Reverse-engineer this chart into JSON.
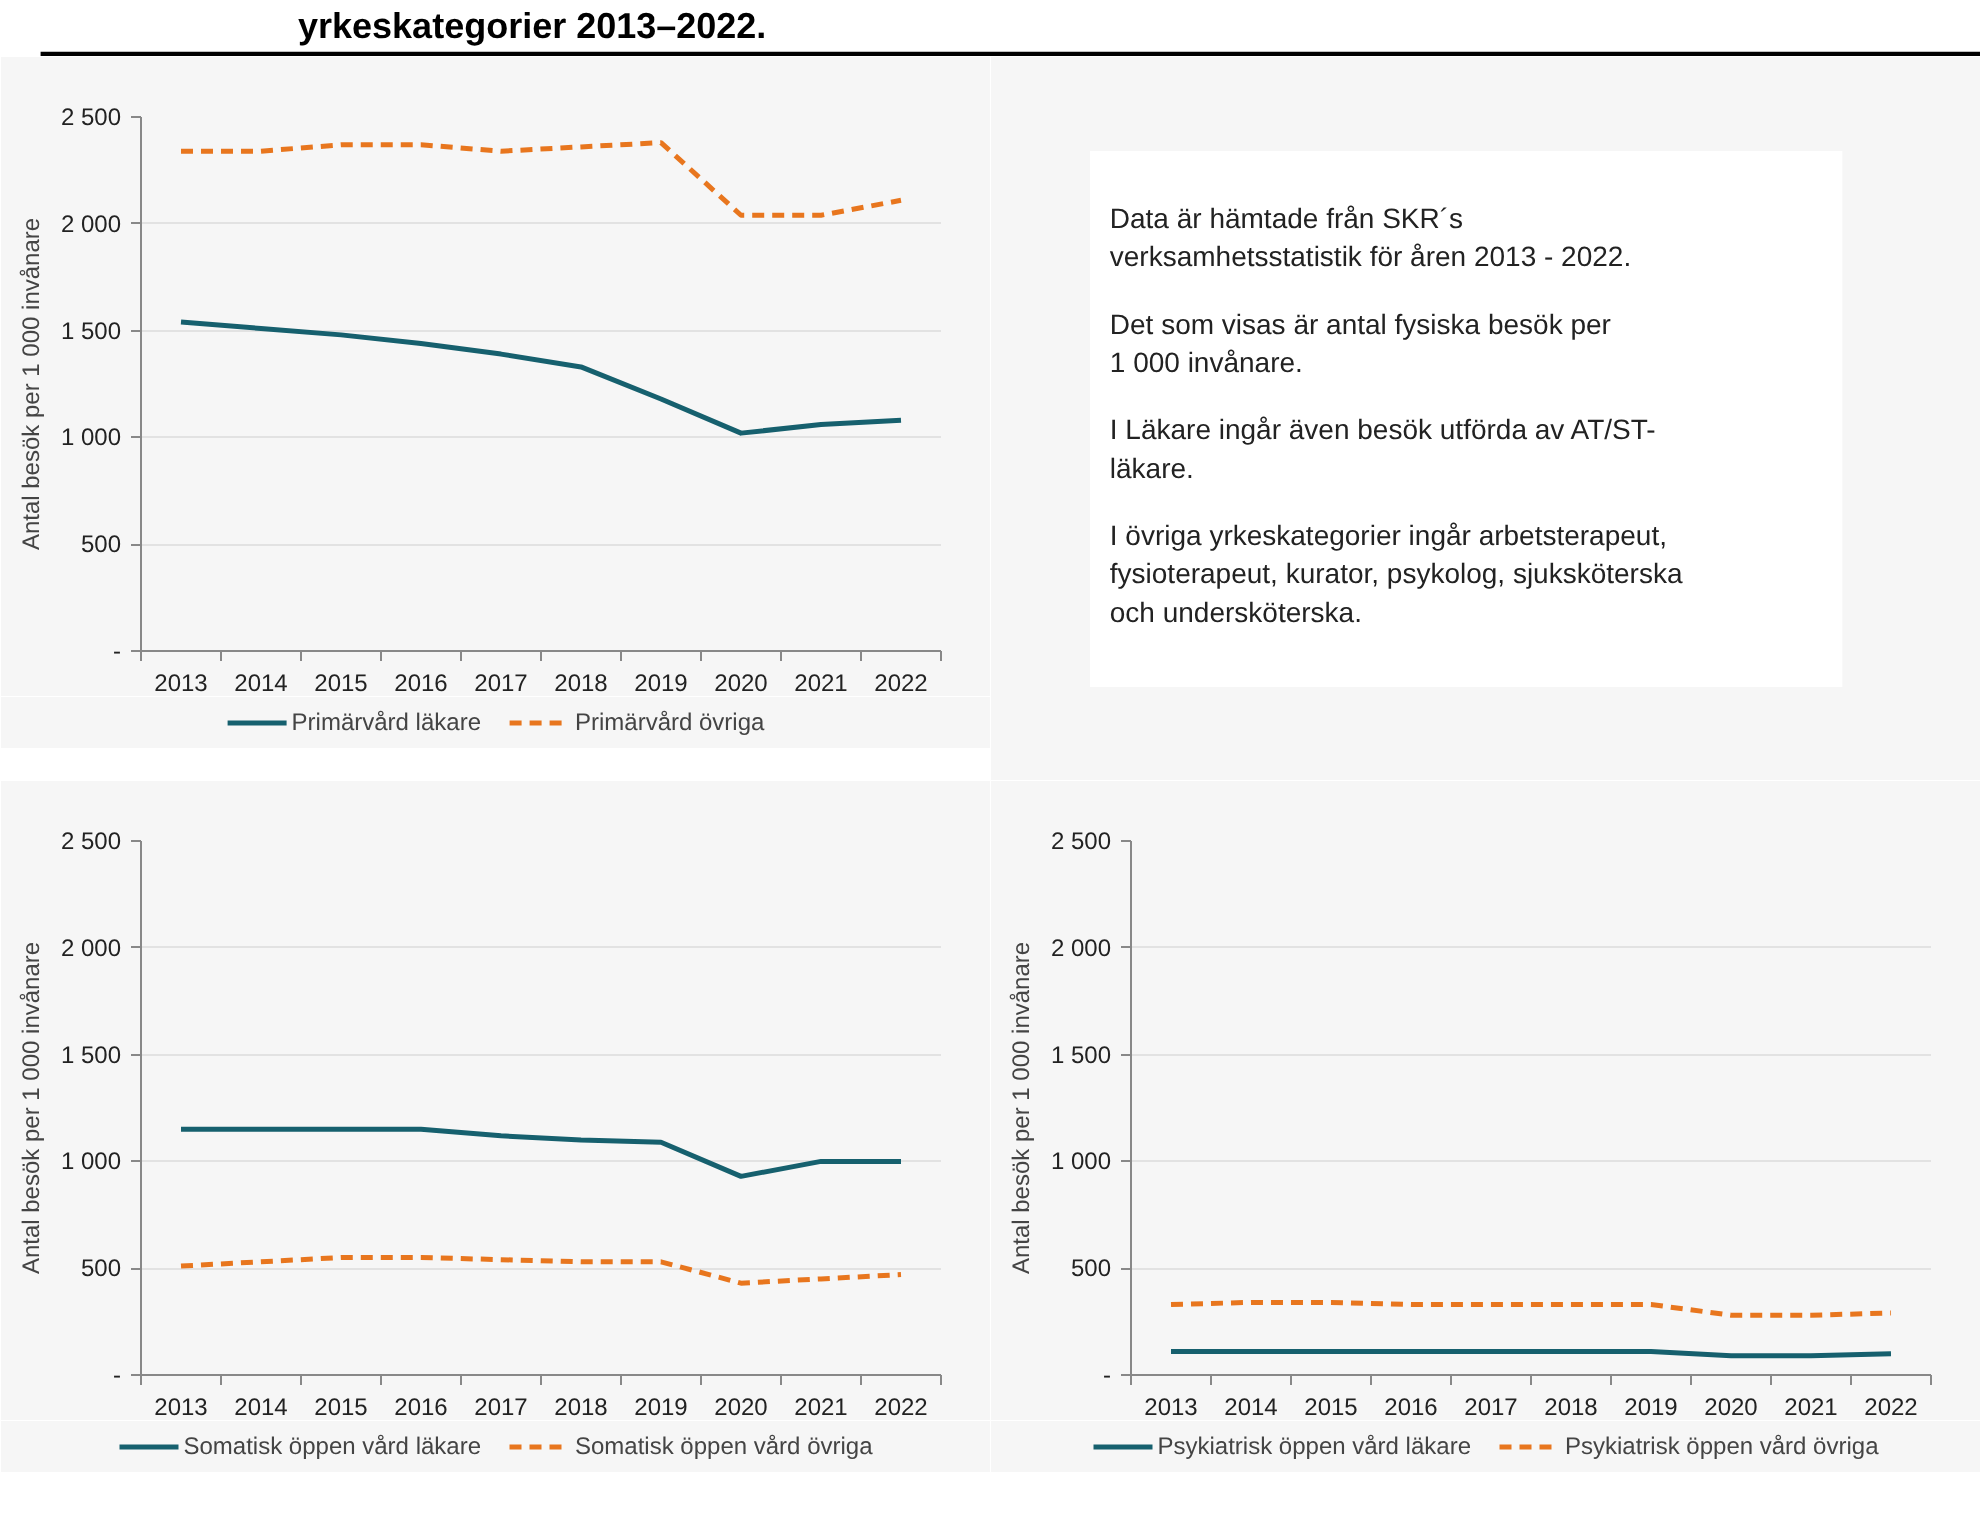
{
  "chart_data": [
    {
      "type": "line",
      "title": "yrkeskategorier 2013–2022.",
      "ylabel": "Antal besök per 1 000 invånare",
      "categories": [
        "2013",
        "2014",
        "2015",
        "2016",
        "2017",
        "2018",
        "2019",
        "2020",
        "2021",
        "2022"
      ],
      "ylim": [
        0,
        2500
      ],
      "yticks": [
        {
          "value": 0,
          "label": "-"
        },
        500,
        {
          "value": 1000,
          "label": "1 000"
        },
        {
          "value": 1500,
          "label": "1 500"
        },
        {
          "value": 2000,
          "label": "2 000"
        },
        {
          "value": 2500,
          "label": "2 500"
        }
      ],
      "grid": "y",
      "legend": "bottom",
      "marker": "none",
      "series": [
        {
          "name": "Primärvård läkare",
          "color": "#16606e",
          "line_style": "solid",
          "values": [
            1540,
            1510,
            1480,
            1440,
            1390,
            1330,
            1180,
            1020,
            1060,
            1080
          ]
        },
        {
          "name": "Primärvård övriga",
          "color": "#e8761e",
          "line_style": "dashed",
          "values": [
            2340,
            2340,
            2370,
            2370,
            2340,
            2360,
            2380,
            2040,
            2040,
            2110
          ]
        }
      ]
    },
    {
      "type": "other",
      "annotations": [
        "Data är hämtade från SKR´s\nverksamhetsstatistik för åren 2013 - 2022.",
        "Det som visas är antal fysiska besök per\n1 000 invånare.",
        "I Läkare ingår även besök utförda av AT/ST-\nläkare.",
        "I övriga yrkeskategorier ingår arbetsterapeut,\nfysioterapeut, kurator, psykolog, sjuksköterska\noch undersköterska."
      ]
    },
    {
      "type": "line",
      "ylabel": "Antal besök per 1 000 invånare",
      "categories": [
        "2013",
        "2014",
        "2015",
        "2016",
        "2017",
        "2018",
        "2019",
        "2020",
        "2021",
        "2022"
      ],
      "ylim": [
        0,
        2500
      ],
      "yticks": [
        {
          "value": 0,
          "label": "-"
        },
        500,
        {
          "value": 1000,
          "label": "1 000"
        },
        {
          "value": 1500,
          "label": "1 500"
        },
        {
          "value": 2000,
          "label": "2 000"
        },
        {
          "value": 2500,
          "label": "2 500"
        }
      ],
      "grid": "y",
      "legend": "bottom",
      "marker": "none",
      "series": [
        {
          "name": "Somatisk öppen vård läkare",
          "color": "#16606e",
          "line_style": "solid",
          "values": [
            1150,
            1150,
            1150,
            1150,
            1120,
            1100,
            1090,
            930,
            1000,
            1000
          ]
        },
        {
          "name": "Somatisk öppen vård övriga",
          "color": "#e8761e",
          "line_style": "dashed",
          "values": [
            510,
            530,
            550,
            550,
            540,
            530,
            530,
            430,
            450,
            470
          ]
        }
      ]
    },
    {
      "type": "line",
      "ylabel": "Antal besök per 1 000 invånare",
      "categories": [
        "2013",
        "2014",
        "2015",
        "2016",
        "2017",
        "2018",
        "2019",
        "2020",
        "2021",
        "2022"
      ],
      "ylim": [
        0,
        2500
      ],
      "yticks": [
        {
          "value": 0,
          "label": "-"
        },
        500,
        {
          "value": 1000,
          "label": "1 000"
        },
        {
          "value": 1500,
          "label": "1 500"
        },
        {
          "value": 2000,
          "label": "2 000"
        },
        {
          "value": 2500,
          "label": "2 500"
        }
      ],
      "grid": "y",
      "legend": "bottom",
      "marker": "none",
      "series": [
        {
          "name": "Psykiatrisk öppen vård läkare",
          "color": "#16606e",
          "line_style": "solid",
          "values": [
            110,
            110,
            110,
            110,
            110,
            110,
            110,
            90,
            90,
            100
          ]
        },
        {
          "name": "Psykiatrisk öppen vård övriga",
          "color": "#e8761e",
          "line_style": "dashed",
          "values": [
            330,
            340,
            340,
            330,
            330,
            330,
            330,
            280,
            280,
            290
          ]
        }
      ]
    }
  ]
}
